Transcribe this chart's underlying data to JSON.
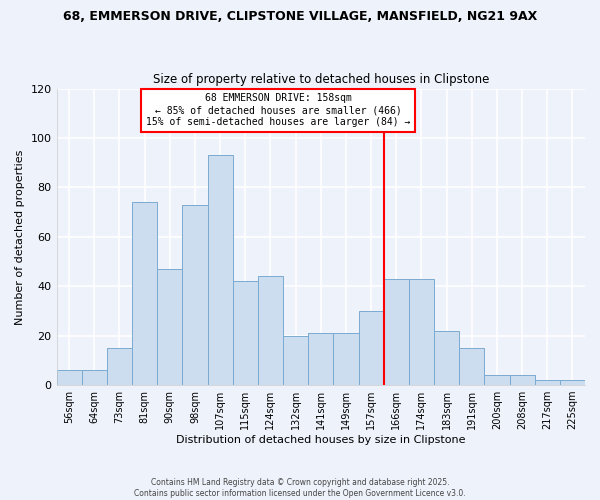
{
  "title_line1": "68, EMMERSON DRIVE, CLIPSTONE VILLAGE, MANSFIELD, NG21 9AX",
  "title_line2": "Size of property relative to detached houses in Clipstone",
  "xlabel": "Distribution of detached houses by size in Clipstone",
  "ylabel": "Number of detached properties",
  "bin_labels": [
    "56sqm",
    "64sqm",
    "73sqm",
    "81sqm",
    "90sqm",
    "98sqm",
    "107sqm",
    "115sqm",
    "124sqm",
    "132sqm",
    "141sqm",
    "149sqm",
    "157sqm",
    "166sqm",
    "174sqm",
    "183sqm",
    "191sqm",
    "200sqm",
    "208sqm",
    "217sqm",
    "225sqm"
  ],
  "bar_heights": [
    6,
    6,
    15,
    74,
    47,
    73,
    93,
    42,
    44,
    20,
    21,
    21,
    30,
    43,
    43,
    22,
    15,
    4,
    4,
    2,
    2
  ],
  "bar_color": "#ccddf0",
  "bar_edge_color": "#7aaad0",
  "highlight_line_color": "red",
  "annotation_title": "68 EMMERSON DRIVE: 158sqm",
  "annotation_line1": "← 85% of detached houses are smaller (466)",
  "annotation_line2": "15% of semi-detached houses are larger (84) →",
  "annotation_box_color": "#ffffff",
  "annotation_box_edge": "red",
  "ylim": [
    0,
    120
  ],
  "yticks": [
    0,
    20,
    40,
    60,
    80,
    100,
    120
  ],
  "footer_line1": "Contains HM Land Registry data © Crown copyright and database right 2025.",
  "footer_line2": "Contains public sector information licensed under the Open Government Licence v3.0.",
  "background_color": "#eef2fa",
  "grid_color": "#ffffff"
}
